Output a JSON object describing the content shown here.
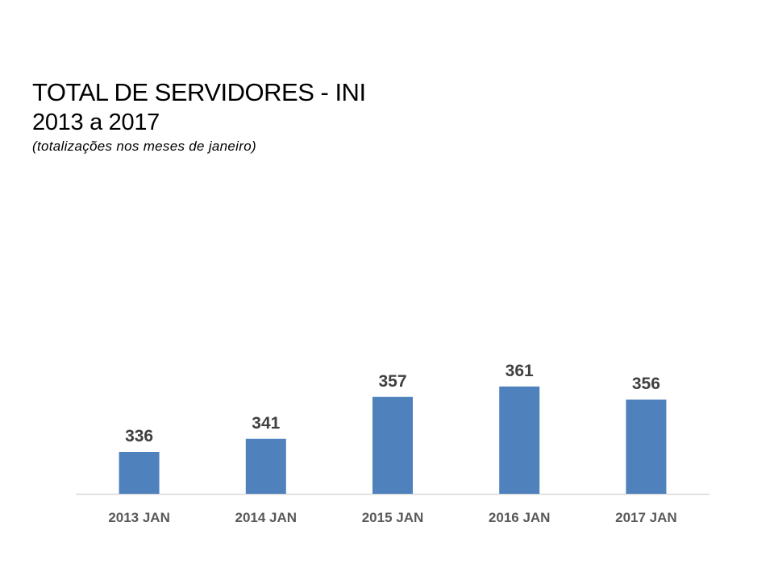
{
  "header": {
    "title": "TOTAL DE SERVIDORES - INI",
    "subtitle": "2013 a 2017",
    "note": "(totalizações nos meses de janeiro)"
  },
  "colors": {
    "bar": "#4F81BD",
    "axis": "#D9D9D9",
    "data_label": "#404040",
    "tick_label": "#595959"
  },
  "chart_data": {
    "type": "bar",
    "title": "TOTAL DE SERVIDORES - INI",
    "subtitle": "2013 a 2017",
    "categories": [
      "2013 JAN",
      "2014 JAN",
      "2015 JAN",
      "2016 JAN",
      "2017 JAN"
    ],
    "values": [
      336,
      341,
      357,
      361,
      356
    ],
    "xlabel": "",
    "ylabel": "",
    "ylim": [
      320,
      362
    ],
    "grid": false,
    "legend": "none",
    "data_labels": true
  }
}
